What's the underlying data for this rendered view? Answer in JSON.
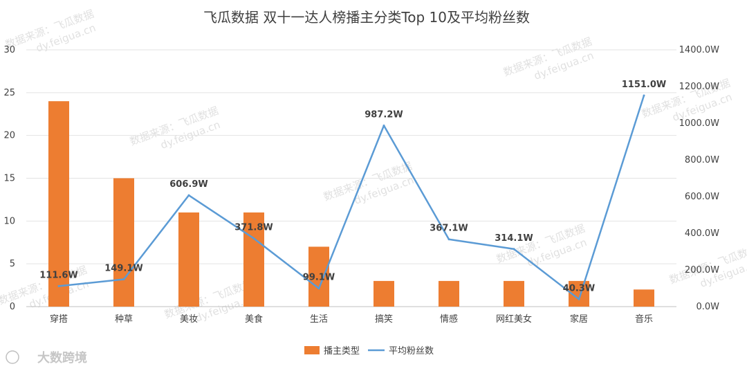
{
  "chart_data": {
    "type": "bar+line",
    "title": "飞瓜数据 双十一达人榜播主分类Top 10及平均粉丝数",
    "categories": [
      "穿搭",
      "种草",
      "美妆",
      "美食",
      "生活",
      "搞笑",
      "情感",
      "网红美女",
      "家居",
      "音乐"
    ],
    "series": [
      {
        "name": "播主类型",
        "type": "bar",
        "axis": "left",
        "color": "#ed7d31",
        "values": [
          24,
          15,
          11,
          11,
          7,
          3,
          3,
          3,
          3,
          2
        ]
      },
      {
        "name": "平均粉丝数",
        "type": "line",
        "axis": "right",
        "color": "#5b9bd5",
        "values": [
          111.6,
          149.1,
          606.9,
          371.8,
          99.1,
          987.2,
          367.1,
          314.1,
          40.3,
          1151.0
        ],
        "labels": [
          "111.6W",
          "149.1W",
          "606.9W",
          "371.8W",
          "99.1W",
          "987.2W",
          "367.1W",
          "314.1W",
          "40.3W",
          "1151.0W"
        ]
      }
    ],
    "y_left": {
      "ylim": [
        0,
        30
      ],
      "ticks": [
        0,
        5,
        10,
        15,
        20,
        25,
        30
      ],
      "tick_labels": [
        "0",
        "5",
        "10",
        "15",
        "20",
        "25",
        "30"
      ]
    },
    "y_right": {
      "ylim": [
        0,
        1400
      ],
      "ticks": [
        0,
        200,
        400,
        600,
        800,
        1000,
        1200,
        1400
      ],
      "tick_labels": [
        "0.0W",
        "200.0W",
        "400.0W",
        "600.0W",
        "800.0W",
        "1000.0W",
        "1200.0W",
        "1400.0W"
      ]
    },
    "grid": true,
    "legend_position": "bottom"
  },
  "watermarks": [
    "数据来源：飞瓜数据",
    "dy.feigua.cn"
  ],
  "brand": "大数跨境"
}
